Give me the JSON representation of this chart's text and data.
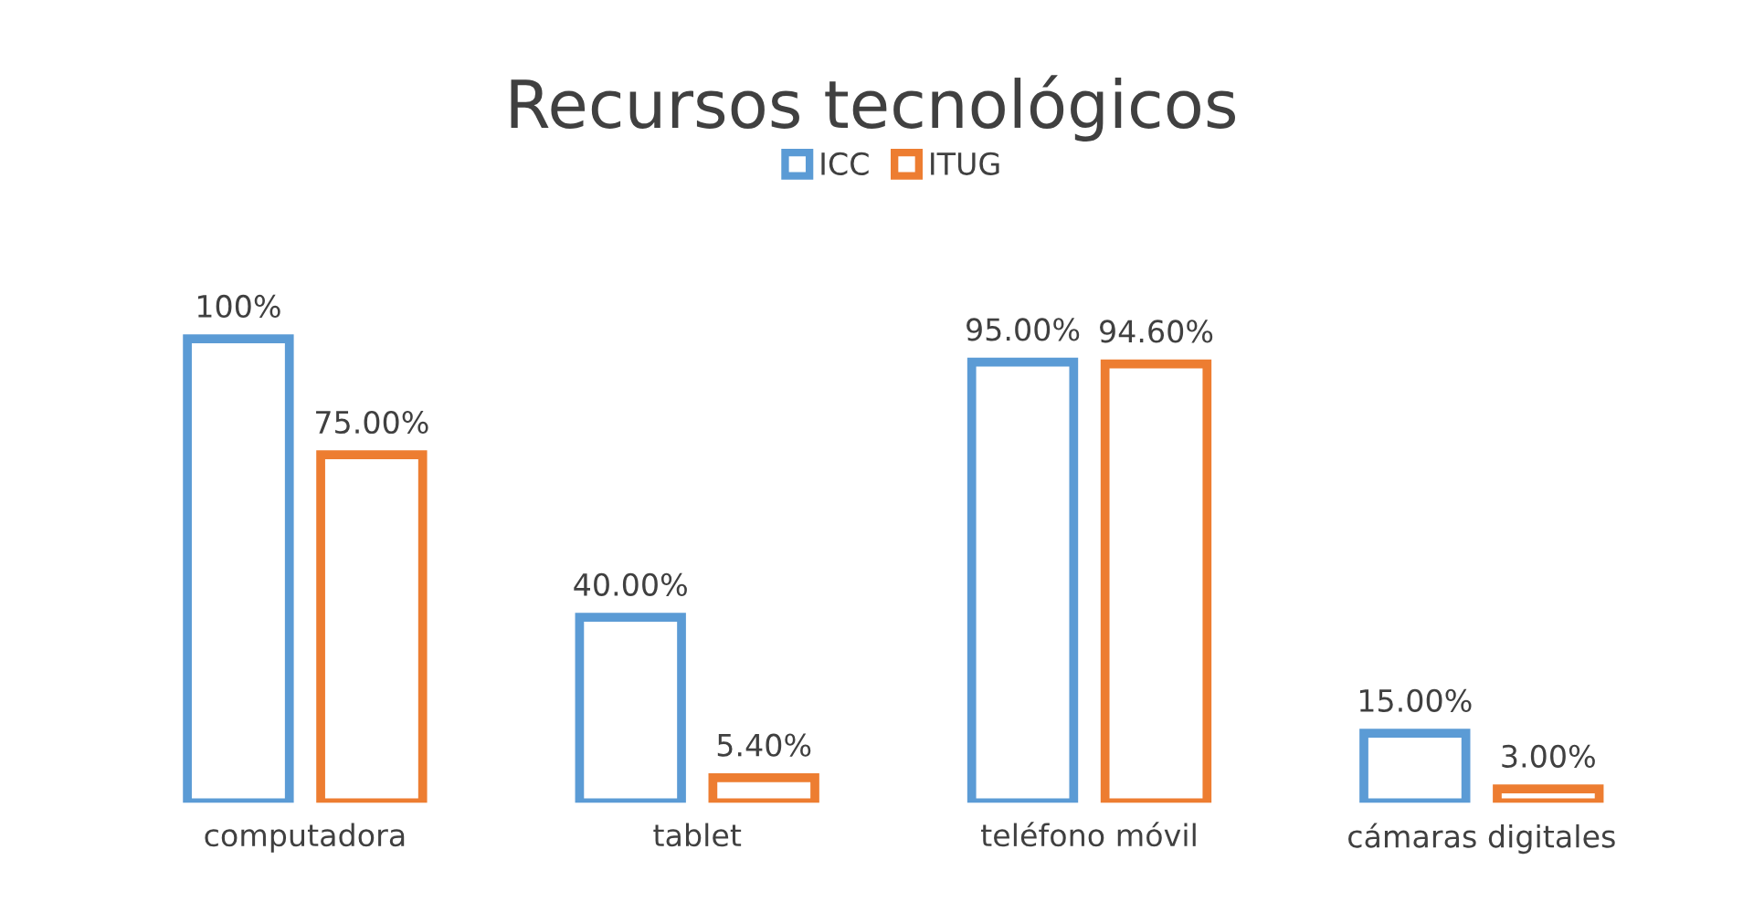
{
  "chart_data": {
    "type": "bar",
    "title": "Recursos tecnológicos",
    "categories": [
      "computadora",
      "tablet",
      "teléfono móvil",
      "cámaras digitales"
    ],
    "series": [
      {
        "name": "ICC",
        "color": "#5b9bd5",
        "values": [
          100,
          40,
          95,
          15
        ],
        "value_labels": [
          "100%",
          "40.00%",
          "95.00%",
          "15.00%"
        ]
      },
      {
        "name": "ITUG",
        "color": "#ed7d31",
        "values": [
          75,
          5.4,
          94.6,
          3
        ],
        "value_labels": [
          "75.00%",
          "5.40%",
          "94.60%",
          "3.00%"
        ]
      }
    ],
    "legend": "top",
    "grid": false
  }
}
